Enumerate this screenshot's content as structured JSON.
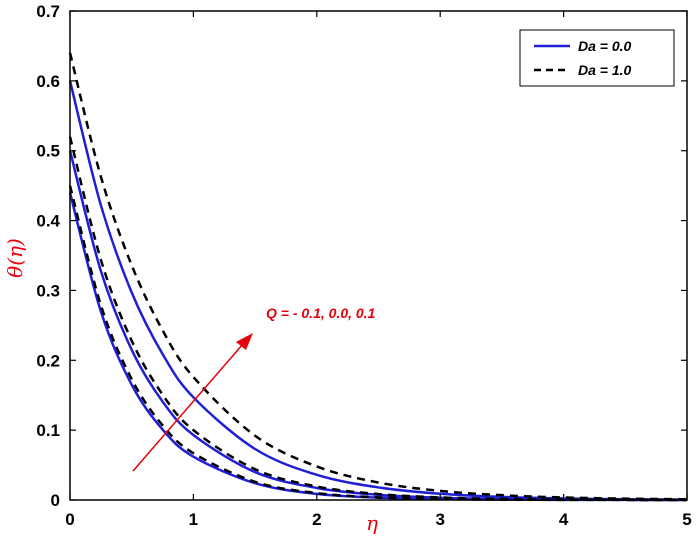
{
  "chart_data": {
    "type": "line",
    "xlabel": "η",
    "ylabel": "θ(η)",
    "xlim": [
      0,
      5
    ],
    "ylim": [
      0,
      0.7
    ],
    "x_ticks": [
      "0",
      "1",
      "2",
      "3",
      "4",
      "5"
    ],
    "y_ticks": [
      "0",
      "0.1",
      "0.2",
      "0.3",
      "0.4",
      "0.5",
      "0.6",
      "0.7"
    ],
    "grid": false,
    "legend_position": "top-right",
    "legend": [
      {
        "label": "Da = 0.0",
        "color": "#1f1fd6",
        "style": "solid"
      },
      {
        "label": "Da = 1.0",
        "color": "#000000",
        "style": "dashed"
      }
    ],
    "annotation": {
      "text": "Q = - 0.1, 0.0, 0.1",
      "color": "#e8000b"
    },
    "series": [
      {
        "group": "Da = 0.0",
        "Q": "-0.1",
        "style": "solid",
        "color": "#1f1fd6",
        "x": [
          0,
          0.25,
          0.5,
          0.75,
          1.0,
          1.5,
          2.0,
          2.5,
          3.0,
          3.5,
          4.0,
          4.5,
          5.0
        ],
        "y": [
          0.44,
          0.27,
          0.165,
          0.101,
          0.062,
          0.024,
          0.0087,
          0.0033,
          0.0012,
          0.0005,
          0.0002,
          0.0001,
          0.0
        ]
      },
      {
        "group": "Da = 0.0",
        "Q": "0.0",
        "style": "solid",
        "color": "#1f1fd6",
        "x": [
          0,
          0.25,
          0.5,
          0.75,
          1.0,
          1.5,
          2.0,
          2.5,
          3.0,
          3.5,
          4.0,
          4.5,
          5.0
        ],
        "y": [
          0.5,
          0.328,
          0.215,
          0.141,
          0.093,
          0.04,
          0.0172,
          0.0074,
          0.0032,
          0.0014,
          0.0006,
          0.0003,
          0.0001
        ]
      },
      {
        "group": "Da = 0.0",
        "Q": "0.1",
        "style": "solid",
        "color": "#1f1fd6",
        "x": [
          0,
          0.25,
          0.5,
          0.75,
          1.0,
          1.5,
          2.0,
          2.5,
          3.0,
          3.5,
          4.0,
          4.5,
          5.0
        ],
        "y": [
          0.6,
          0.422,
          0.297,
          0.209,
          0.147,
          0.073,
          0.036,
          0.018,
          0.0089,
          0.0044,
          0.0022,
          0.0011,
          0.0005
        ]
      },
      {
        "group": "Da = 1.0",
        "Q": "-0.1",
        "style": "dashed",
        "color": "#000000",
        "x": [
          0,
          0.25,
          0.5,
          0.75,
          1.0,
          1.5,
          2.0,
          2.5,
          3.0,
          3.5,
          4.0,
          4.5,
          5.0
        ],
        "y": [
          0.45,
          0.279,
          0.173,
          0.107,
          0.067,
          0.026,
          0.0099,
          0.0038,
          0.0015,
          0.0006,
          0.0002,
          0.0001,
          0.0
        ]
      },
      {
        "group": "Da = 1.0",
        "Q": "0.0",
        "style": "dashed",
        "color": "#000000",
        "x": [
          0,
          0.25,
          0.5,
          0.75,
          1.0,
          1.5,
          2.0,
          2.5,
          3.0,
          3.5,
          4.0,
          4.5,
          5.0
        ],
        "y": [
          0.52,
          0.344,
          0.228,
          0.151,
          0.1,
          0.044,
          0.0193,
          0.0085,
          0.0037,
          0.0016,
          0.0007,
          0.0003,
          0.0001
        ]
      },
      {
        "group": "Da = 1.0",
        "Q": "0.1",
        "style": "dashed",
        "color": "#000000",
        "x": [
          0,
          0.25,
          0.5,
          0.75,
          1.0,
          1.5,
          2.0,
          2.5,
          3.0,
          3.5,
          4.0,
          4.5,
          5.0
        ],
        "y": [
          0.64,
          0.463,
          0.336,
          0.243,
          0.176,
          0.092,
          0.048,
          0.025,
          0.013,
          0.0069,
          0.0036,
          0.0019,
          0.001
        ]
      }
    ]
  }
}
